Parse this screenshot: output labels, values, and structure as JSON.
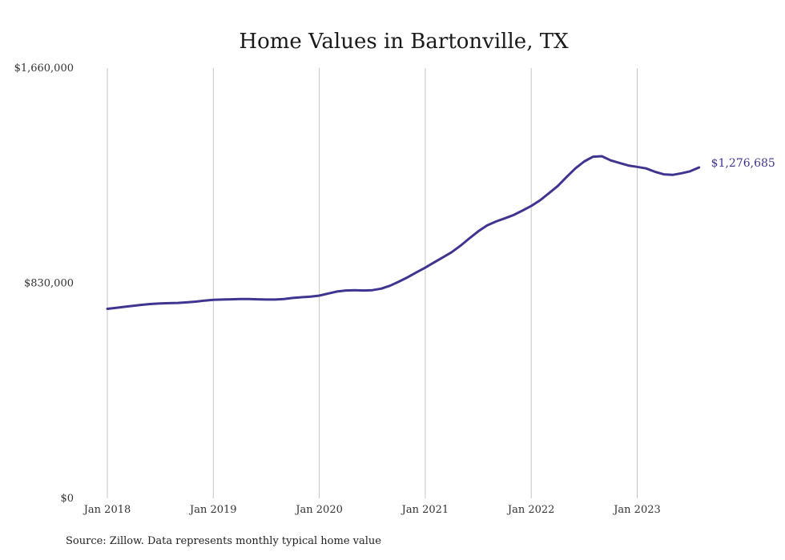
{
  "chart_data": {
    "type": "line",
    "title": "Home Values in Bartonville, TX",
    "xlabel": "",
    "ylabel": "",
    "x_start": "2018-01",
    "x_ticks": [
      "Jan 2018",
      "Jan 2019",
      "Jan 2020",
      "Jan 2021",
      "Jan 2022",
      "Jan 2023"
    ],
    "y_ticks": [
      "$0",
      "$830,000",
      "$1,660,000"
    ],
    "ylim": [
      0,
      1660000
    ],
    "grid": "vertical",
    "line_color": "#3f3590",
    "series": [
      {
        "name": "",
        "x": [
          "2018-01",
          "2018-02",
          "2018-03",
          "2018-04",
          "2018-05",
          "2018-06",
          "2018-07",
          "2018-08",
          "2018-09",
          "2018-10",
          "2018-11",
          "2018-12",
          "2019-01",
          "2019-02",
          "2019-03",
          "2019-04",
          "2019-05",
          "2019-06",
          "2019-07",
          "2019-08",
          "2019-09",
          "2019-10",
          "2019-11",
          "2019-12",
          "2020-01",
          "2020-02",
          "2020-03",
          "2020-04",
          "2020-05",
          "2020-06",
          "2020-07",
          "2020-08",
          "2020-09",
          "2020-10",
          "2020-11",
          "2020-12",
          "2021-01",
          "2021-02",
          "2021-03",
          "2021-04",
          "2021-05",
          "2021-06",
          "2021-07",
          "2021-08",
          "2021-09",
          "2021-10",
          "2021-11",
          "2021-12",
          "2022-01",
          "2022-02",
          "2022-03",
          "2022-04",
          "2022-05",
          "2022-06",
          "2022-07",
          "2022-08",
          "2022-09",
          "2022-10",
          "2022-11",
          "2022-12",
          "2023-01",
          "2023-02",
          "2023-03",
          "2023-04",
          "2023-05",
          "2023-06",
          "2023-07",
          "2023-08"
        ],
        "values": [
          731000,
          735000,
          739000,
          743000,
          747000,
          750000,
          752000,
          753000,
          754000,
          756000,
          759000,
          763000,
          766000,
          767000,
          768000,
          769000,
          769000,
          768000,
          767000,
          767000,
          769000,
          773000,
          776000,
          778000,
          782000,
          790000,
          798000,
          802000,
          803000,
          802000,
          803000,
          809000,
          820000,
          836000,
          853000,
          872000,
          890000,
          910000,
          930000,
          950000,
          975000,
          1003000,
          1030000,
          1053000,
          1068000,
          1080000,
          1093000,
          1110000,
          1128000,
          1150000,
          1177000,
          1205000,
          1240000,
          1273000,
          1300000,
          1318000,
          1320000,
          1304000,
          1294000,
          1284000,
          1279000,
          1273000,
          1260000,
          1250000,
          1248000,
          1254000,
          1262000,
          1276685
        ]
      }
    ],
    "end_label": "$1,276,685"
  },
  "source_text": "Source: Zillow. Data represents monthly typical home value"
}
